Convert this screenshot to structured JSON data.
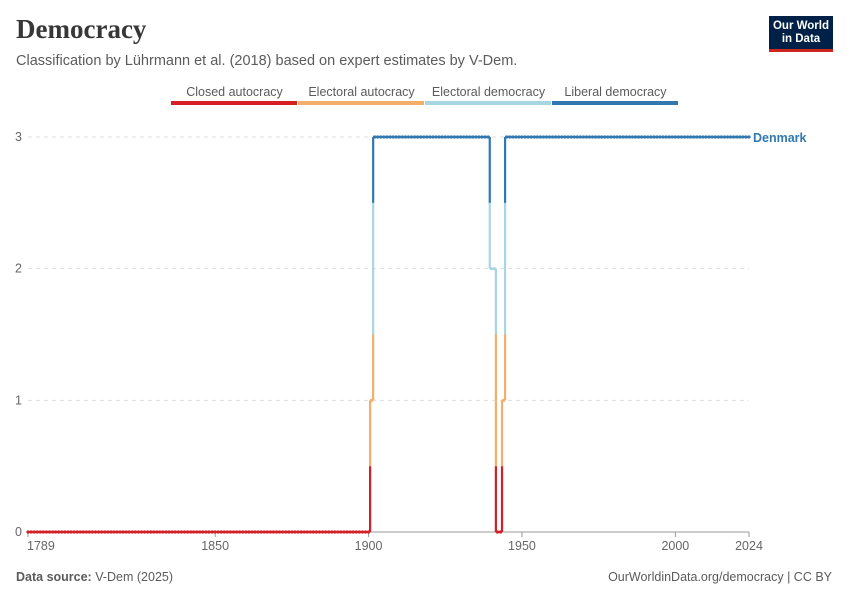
{
  "header": {
    "title": "Democracy",
    "subtitle": "Classification by Lührmann et al. (2018) based on expert estimates by V-Dem."
  },
  "logo": {
    "line1": "Our World",
    "line2": "in Data"
  },
  "footer": {
    "source_label": "Data source:",
    "source_value": "V-Dem (2025)",
    "credit": "OurWorldinData.org/democracy | CC BY"
  },
  "colors": {
    "closed_autocracy": "#d42025",
    "electoral_autocracy": "#f4ae6b",
    "electoral_democracy": "#a8d5e2",
    "liberal_democracy": "#3178b0",
    "grid": "#dddddd",
    "axis": "#999999"
  },
  "chart_data": {
    "type": "line",
    "title": "Democracy",
    "xlabel": "",
    "ylabel": "",
    "xlim": [
      1789,
      2024
    ],
    "ylim": [
      0,
      3
    ],
    "x_ticks": [
      1789,
      1850,
      1900,
      1950,
      2000,
      2024
    ],
    "y_ticks": [
      0,
      1,
      2,
      3
    ],
    "grid": true,
    "legend": {
      "placement": "top",
      "items": [
        {
          "label": "Closed autocracy",
          "value": 0,
          "color_key": "closed_autocracy"
        },
        {
          "label": "Electoral autocracy",
          "value": 1,
          "color_key": "electoral_autocracy"
        },
        {
          "label": "Electoral democracy",
          "value": 2,
          "color_key": "electoral_democracy"
        },
        {
          "label": "Liberal democracy",
          "value": 3,
          "color_key": "liberal_democracy"
        }
      ]
    },
    "series": [
      {
        "name": "Denmark",
        "segments": [
          {
            "from": 1789,
            "to": 1900,
            "value": 0
          },
          {
            "from": 1901,
            "to": 1901,
            "value": 1
          },
          {
            "from": 1902,
            "to": 1939,
            "value": 3
          },
          {
            "from": 1940,
            "to": 1941,
            "value": 2
          },
          {
            "from": 1942,
            "to": 1943,
            "value": 0
          },
          {
            "from": 1944,
            "to": 1944,
            "value": 1
          },
          {
            "from": 1945,
            "to": 2024,
            "value": 3
          }
        ]
      }
    ]
  }
}
